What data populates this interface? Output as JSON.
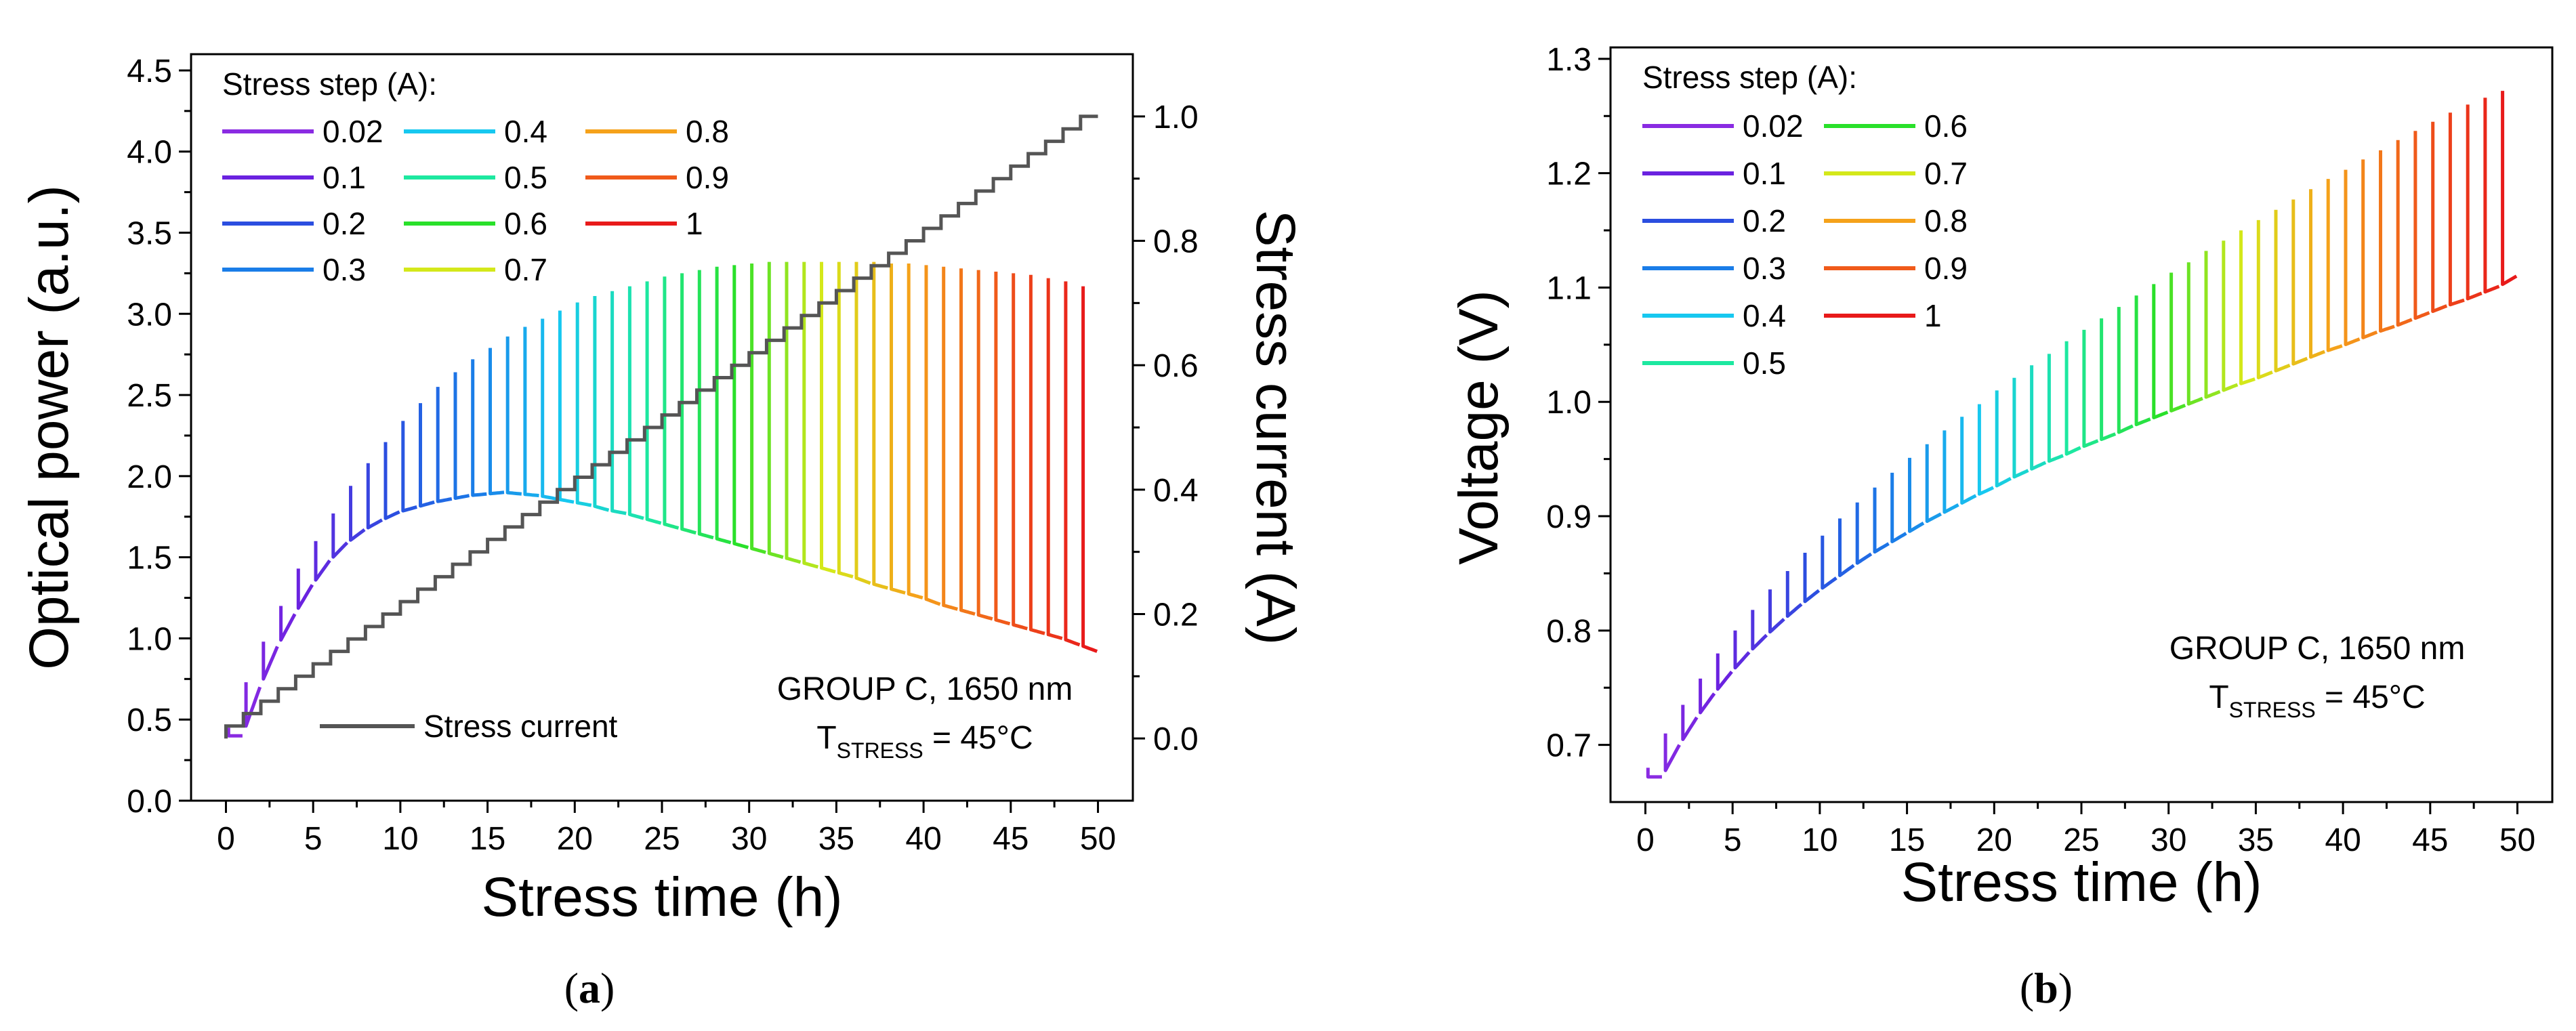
{
  "chart_data": [
    {
      "type": "line",
      "panel_label": "a",
      "xlabel": "Stress time (h)",
      "ylabel": "Optical power (a.u.)",
      "y2label": "Stress current (A)",
      "xlim": [
        -2,
        52
      ],
      "ylim": [
        0,
        4.6
      ],
      "y2lim": [
        -0.1,
        1.1
      ],
      "xticks": [
        "0",
        "5",
        "10",
        "15",
        "20",
        "25",
        "30",
        "35",
        "40",
        "45",
        "50"
      ],
      "yticks": [
        "0.0",
        "0.5",
        "1.0",
        "1.5",
        "2.0",
        "2.5",
        "3.0",
        "3.5",
        "4.0",
        "4.5"
      ],
      "y2ticks": [
        "0.0",
        "0.2",
        "0.4",
        "0.6",
        "0.8",
        "1.0"
      ],
      "legend_title": "Stress step (A):",
      "legend_items": [
        "0.02",
        "0.1",
        "0.2",
        "0.3",
        "0.4",
        "0.5",
        "0.6",
        "0.7",
        "0.8",
        "0.9",
        "1"
      ],
      "legend_colors": [
        "#8a2be2",
        "#6a22e0",
        "#2b4ee0",
        "#1a7de8",
        "#17c8f0",
        "#1de8a0",
        "#29e02a",
        "#d4e81a",
        "#f5a21a",
        "#f05a1a",
        "#e81a1a"
      ],
      "series_line_label": "Stress current",
      "series_line_color": "#555555",
      "annotation_line1": "GROUP C, 1650 nm",
      "annotation_t": "T",
      "annotation_sub": "STRESS",
      "annotation_rest": " = 45°C",
      "note": "Each 1-h step ends with a short measurement spike; step curves colored by stress current (rainbow). Optical power base rises to ~1.9 at 15 h then decreases to ~0.92 at 50 h; spike peaks rise to ~3.32 near 30-35 h then fall to ~3.17.",
      "step_times_h": [
        1,
        2,
        3,
        4,
        5,
        6,
        7,
        8,
        9,
        10,
        11,
        12,
        13,
        14,
        15,
        16,
        17,
        18,
        19,
        20,
        21,
        22,
        23,
        24,
        25,
        26,
        27,
        28,
        29,
        30,
        31,
        32,
        33,
        34,
        35,
        36,
        37,
        38,
        39,
        40,
        41,
        42,
        43,
        44,
        45,
        46,
        47,
        48,
        49,
        50
      ],
      "step_current_A": [
        0.02,
        0.04,
        0.06,
        0.08,
        0.1,
        0.12,
        0.14,
        0.16,
        0.18,
        0.2,
        0.22,
        0.24,
        0.26,
        0.28,
        0.3,
        0.32,
        0.34,
        0.36,
        0.38,
        0.4,
        0.42,
        0.44,
        0.46,
        0.48,
        0.5,
        0.52,
        0.54,
        0.56,
        0.58,
        0.6,
        0.62,
        0.64,
        0.66,
        0.68,
        0.7,
        0.72,
        0.74,
        0.76,
        0.78,
        0.8,
        0.82,
        0.84,
        0.86,
        0.88,
        0.9,
        0.92,
        0.94,
        0.96,
        0.98,
        1.0
      ],
      "optical_power_base": [
        0.4,
        0.7,
        0.95,
        1.15,
        1.33,
        1.48,
        1.59,
        1.67,
        1.73,
        1.78,
        1.81,
        1.84,
        1.86,
        1.88,
        1.89,
        1.9,
        1.89,
        1.88,
        1.86,
        1.84,
        1.82,
        1.79,
        1.77,
        1.74,
        1.71,
        1.68,
        1.65,
        1.62,
        1.59,
        1.56,
        1.53,
        1.5,
        1.47,
        1.44,
        1.41,
        1.38,
        1.34,
        1.31,
        1.28,
        1.25,
        1.21,
        1.18,
        1.15,
        1.12,
        1.09,
        1.06,
        1.03,
        1.0,
        0.96,
        0.92
      ],
      "optical_power_peak": [
        0.45,
        0.73,
        0.98,
        1.2,
        1.43,
        1.6,
        1.77,
        1.94,
        2.08,
        2.21,
        2.34,
        2.45,
        2.55,
        2.64,
        2.72,
        2.79,
        2.86,
        2.92,
        2.97,
        3.02,
        3.07,
        3.11,
        3.14,
        3.17,
        3.2,
        3.23,
        3.25,
        3.27,
        3.29,
        3.3,
        3.31,
        3.32,
        3.32,
        3.32,
        3.32,
        3.32,
        3.32,
        3.32,
        3.31,
        3.31,
        3.3,
        3.29,
        3.28,
        3.27,
        3.26,
        3.25,
        3.24,
        3.22,
        3.2,
        3.17
      ]
    },
    {
      "type": "line",
      "panel_label": "b",
      "xlabel": "Stress time (h)",
      "ylabel": "Voltage (V)",
      "xlim": [
        -2,
        52
      ],
      "ylim": [
        0.65,
        1.31
      ],
      "xticks": [
        "0",
        "5",
        "10",
        "15",
        "20",
        "25",
        "30",
        "35",
        "40",
        "45",
        "50"
      ],
      "yticks": [
        "0.7",
        "0.8",
        "0.9",
        "1.0",
        "1.1",
        "1.2",
        "1.3"
      ],
      "legend_title": "Stress step (A):",
      "legend_items": [
        "0.02",
        "0.1",
        "0.2",
        "0.3",
        "0.4",
        "0.5",
        "0.6",
        "0.7",
        "0.8",
        "0.9",
        "1"
      ],
      "legend_colors": [
        "#8a2be2",
        "#6a22e0",
        "#2b4ee0",
        "#1a7de8",
        "#17c8f0",
        "#1de8a0",
        "#29e02a",
        "#d4e81a",
        "#f5a21a",
        "#f05a1a",
        "#e81a1a"
      ],
      "annotation_line1": "GROUP C, 1650 nm",
      "annotation_t": "T",
      "annotation_sub": "STRESS",
      "annotation_rest": " = 45°C",
      "note": "Voltage base rises from ~0.67 V at 1 h to ~1.11 V at 50 h; spike peaks rise from ~0.68 V to ~1.27 V.",
      "step_times_h": [
        1,
        2,
        3,
        4,
        5,
        6,
        7,
        8,
        9,
        10,
        11,
        12,
        13,
        14,
        15,
        16,
        17,
        18,
        19,
        20,
        21,
        22,
        23,
        24,
        25,
        26,
        27,
        28,
        29,
        30,
        31,
        32,
        33,
        34,
        35,
        36,
        37,
        38,
        39,
        40,
        41,
        42,
        43,
        44,
        45,
        46,
        47,
        48,
        49,
        50
      ],
      "voltage_base": [
        0.672,
        0.7,
        0.724,
        0.745,
        0.764,
        0.781,
        0.796,
        0.81,
        0.823,
        0.835,
        0.846,
        0.857,
        0.867,
        0.876,
        0.885,
        0.894,
        0.902,
        0.91,
        0.918,
        0.925,
        0.933,
        0.94,
        0.947,
        0.953,
        0.96,
        0.966,
        0.972,
        0.979,
        0.985,
        0.991,
        0.997,
        1.003,
        1.009,
        1.015,
        1.02,
        1.026,
        1.032,
        1.038,
        1.044,
        1.049,
        1.055,
        1.061,
        1.066,
        1.072,
        1.078,
        1.084,
        1.089,
        1.095,
        1.101,
        1.11
      ],
      "voltage_peak": [
        0.68,
        0.71,
        0.735,
        0.758,
        0.78,
        0.8,
        0.818,
        0.836,
        0.852,
        0.868,
        0.883,
        0.898,
        0.912,
        0.925,
        0.938,
        0.951,
        0.963,
        0.975,
        0.987,
        0.998,
        1.01,
        1.021,
        1.032,
        1.042,
        1.053,
        1.063,
        1.073,
        1.083,
        1.093,
        1.103,
        1.113,
        1.122,
        1.132,
        1.141,
        1.15,
        1.159,
        1.168,
        1.177,
        1.186,
        1.195,
        1.203,
        1.212,
        1.22,
        1.229,
        1.237,
        1.245,
        1.253,
        1.26,
        1.266,
        1.272
      ]
    }
  ]
}
